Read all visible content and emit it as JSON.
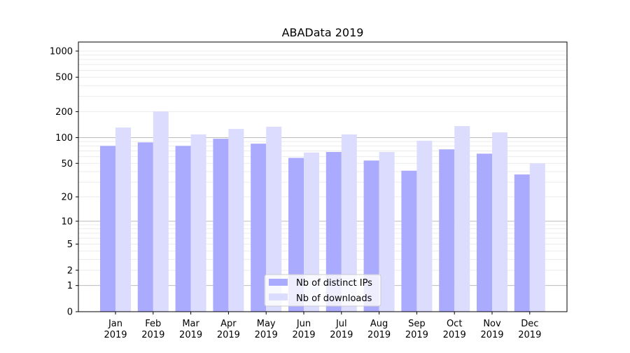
{
  "chart_data": {
    "type": "bar",
    "title": "ABAData 2019",
    "xlabel": "",
    "ylabel": "",
    "yscale": "log(1+y)",
    "ylim": [
      0,
      1300
    ],
    "yticks": [
      0,
      1,
      2,
      5,
      10,
      20,
      50,
      100,
      200,
      500,
      1000
    ],
    "categories": [
      [
        "Jan",
        "2019"
      ],
      [
        "Feb",
        "2019"
      ],
      [
        "Mar",
        "2019"
      ],
      [
        "Apr",
        "2019"
      ],
      [
        "May",
        "2019"
      ],
      [
        "Jun",
        "2019"
      ],
      [
        "Jul",
        "2019"
      ],
      [
        "Aug",
        "2019"
      ],
      [
        "Sep",
        "2019"
      ],
      [
        "Oct",
        "2019"
      ],
      [
        "Nov",
        "2019"
      ],
      [
        "Dec",
        "2019"
      ]
    ],
    "series": [
      {
        "name": "Nb of distinct IPs",
        "color": "#aaaaff",
        "values": [
          80,
          88,
          80,
          97,
          85,
          58,
          68,
          54,
          41,
          73,
          65,
          37
        ]
      },
      {
        "name": "Nb of downloads",
        "color": "#dcdcff",
        "values": [
          131,
          201,
          109,
          126,
          134,
          67,
          109,
          68,
          92,
          136,
          115,
          50
        ]
      }
    ],
    "legend_position": "lower-center",
    "grid": true
  }
}
